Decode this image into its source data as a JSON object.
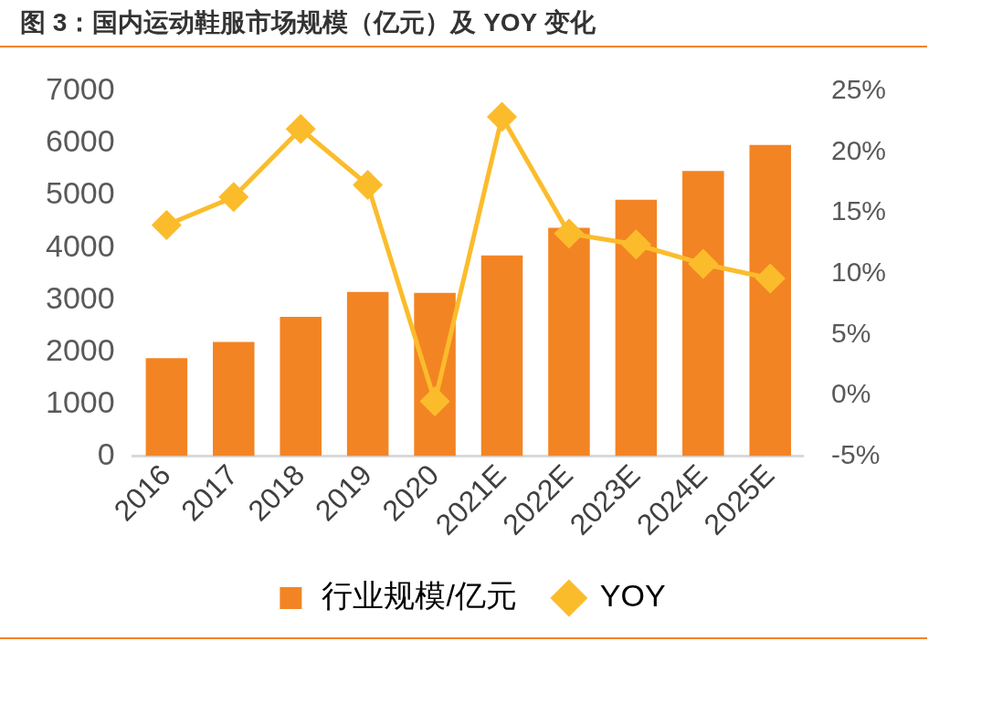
{
  "chart_data": {
    "type": "bar",
    "title": "图 3：国内运动鞋服市场规模（亿元）及 YOY 变化",
    "categories": [
      "2016",
      "2017",
      "2018",
      "2019",
      "2020",
      "2021E",
      "2022E",
      "2023E",
      "2024E",
      "2025E"
    ],
    "series": [
      {
        "name": "行业规模/亿元",
        "color": "#f38423",
        "values": [
          1880,
          2190,
          2670,
          3150,
          3130,
          3850,
          4380,
          4920,
          5470,
          5970
        ]
      },
      {
        "name": "YOY",
        "type": "line",
        "axis": "y2",
        "color": "#fbbc2c",
        "marker": "diamond",
        "values": [
          14.0,
          16.3,
          21.9,
          17.3,
          -0.5,
          22.9,
          13.3,
          12.4,
          10.8,
          9.6
        ]
      }
    ],
    "ylim": [
      0,
      7000
    ],
    "yticks": [
      0,
      1000,
      2000,
      3000,
      4000,
      5000,
      6000,
      7000
    ],
    "y2lim": [
      -5,
      25
    ],
    "y2ticks": [
      {
        "value": -5,
        "label": "-5%"
      },
      {
        "value": 0,
        "label": "0%"
      },
      {
        "value": 5,
        "label": "5%"
      },
      {
        "value": 10,
        "label": "10%"
      },
      {
        "value": 15,
        "label": "15%"
      },
      {
        "value": 20,
        "label": "20%"
      },
      {
        "value": 25,
        "label": "25%"
      }
    ],
    "grid": false,
    "legend": "bottom"
  }
}
